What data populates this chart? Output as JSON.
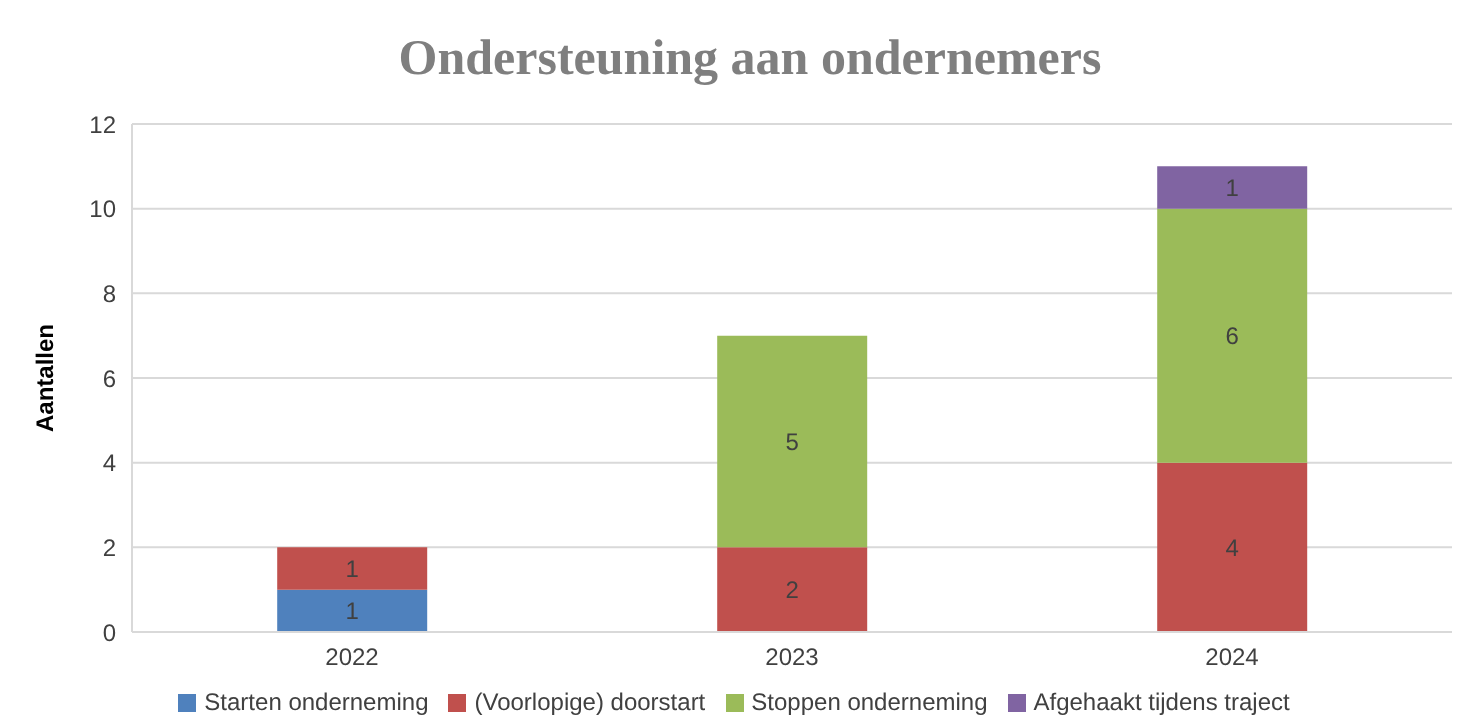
{
  "chart_data": {
    "type": "bar",
    "title": "Ondersteuning aan ondernemers",
    "ylabel": "Aantallen",
    "categories": [
      "2022",
      "2023",
      "2024"
    ],
    "stacked": true,
    "data_labels": true,
    "grid": "y",
    "legend": "bottom",
    "ylim": [
      0,
      12
    ],
    "yticks": [
      0,
      2,
      4,
      6,
      8,
      10,
      12
    ],
    "series": [
      {
        "name": "Starten onderneming",
        "color": "#4f81bd",
        "values": [
          1,
          null,
          null
        ]
      },
      {
        "name": "(Voorlopige) doorstart",
        "color": "#c0504d",
        "values": [
          1,
          2,
          4
        ]
      },
      {
        "name": "Stoppen onderneming",
        "color": "#9bbb59",
        "values": [
          null,
          5,
          6
        ]
      },
      {
        "name": "Afgehaakt tijdens traject",
        "color": "#8064a2",
        "values": [
          null,
          null,
          1
        ]
      }
    ]
  }
}
